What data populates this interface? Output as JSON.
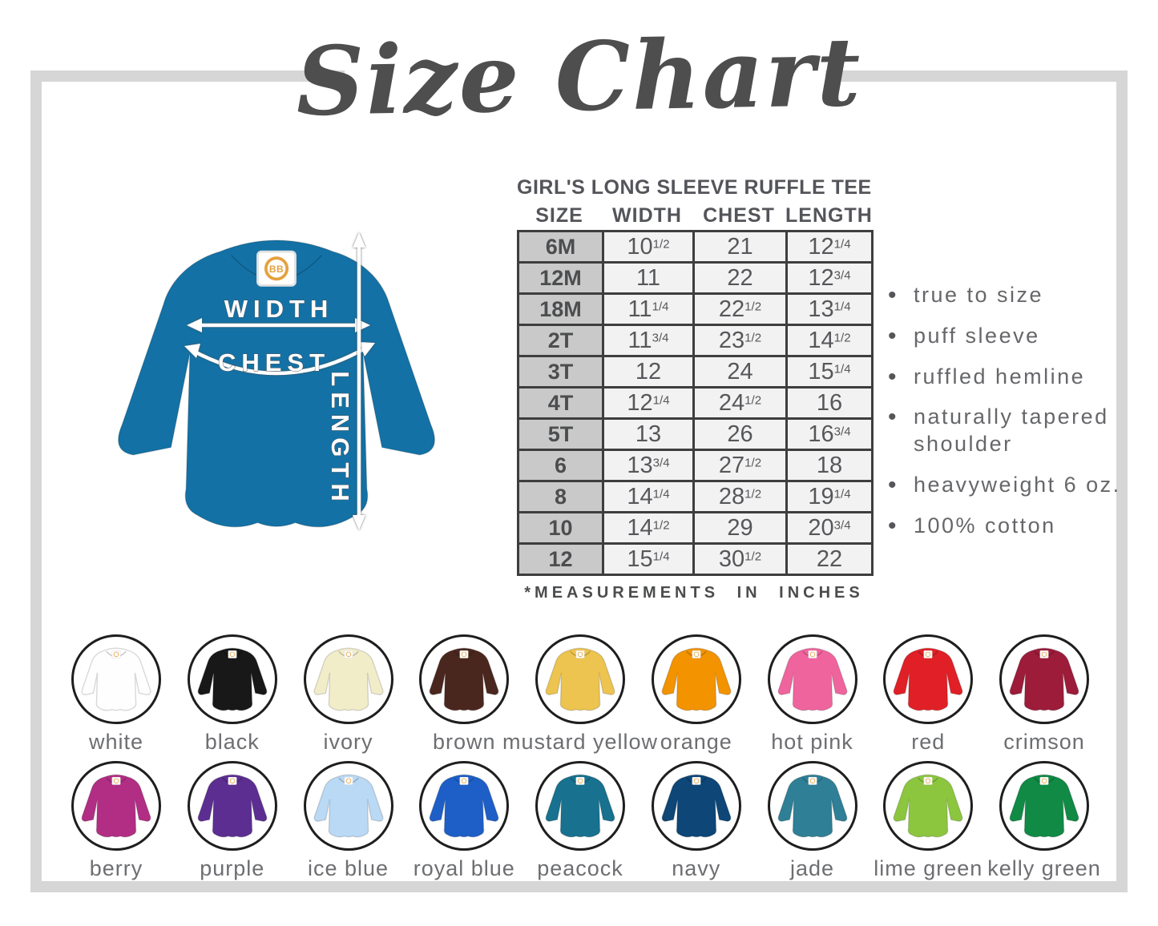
{
  "title": {
    "text": "Size Chart"
  },
  "illustration": {
    "shirt_color": "#1371a5",
    "tag_text": "BB",
    "labels": {
      "width": "WIDTH",
      "chest": "CHEST",
      "length": "LENGTH"
    }
  },
  "size_table": {
    "heading": "GIRL'S LONG SLEEVE RUFFLE TEE",
    "columns": [
      "SIZE",
      "WIDTH",
      "CHEST",
      "LENGTH"
    ],
    "rows": [
      {
        "size": "6M",
        "width": "10 1/2",
        "chest": "21",
        "length": "12 1/4"
      },
      {
        "size": "12M",
        "width": "11",
        "chest": "22",
        "length": "12 3/4"
      },
      {
        "size": "18M",
        "width": "11 1/4",
        "chest": "22 1/2",
        "length": "13 1/4"
      },
      {
        "size": "2T",
        "width": "11 3/4",
        "chest": "23 1/2",
        "length": "14 1/2"
      },
      {
        "size": "3T",
        "width": "12",
        "chest": "24",
        "length": "15 1/4"
      },
      {
        "size": "4T",
        "width": "12 1/4",
        "chest": "24 1/2",
        "length": "16"
      },
      {
        "size": "5T",
        "width": "13",
        "chest": "26",
        "length": "16 3/4"
      },
      {
        "size": "6",
        "width": "13 3/4",
        "chest": "27 1/2",
        "length": "18"
      },
      {
        "size": "8",
        "width": "14 1/4",
        "chest": "28 1/2",
        "length": "19 1/4"
      },
      {
        "size": "10",
        "width": "14 1/2",
        "chest": "29",
        "length": "20 3/4"
      },
      {
        "size": "12",
        "width": "15 1/4",
        "chest": "30 1/2",
        "length": "22"
      }
    ],
    "footnote": "*MEASUREMENTS IN INCHES"
  },
  "features": [
    "true to size",
    "puff sleeve",
    "ruffled hemline",
    "naturally tapered shoulder",
    "heavyweight 6 oz.",
    "100% cotton"
  ],
  "swatches": {
    "rows": [
      [
        {
          "label": "white",
          "hex": "#fefefe"
        },
        {
          "label": "black",
          "hex": "#181818"
        },
        {
          "label": "ivory",
          "hex": "#f2edc9"
        },
        {
          "label": "brown",
          "hex": "#4a271e"
        },
        {
          "label": "mustard yellow",
          "hex": "#edc44f"
        },
        {
          "label": "orange",
          "hex": "#f39300"
        },
        {
          "label": "hot pink",
          "hex": "#f0649e"
        },
        {
          "label": "red",
          "hex": "#e02026"
        },
        {
          "label": "crimson",
          "hex": "#9c1c3a"
        }
      ],
      [
        {
          "label": "berry",
          "hex": "#b12e84"
        },
        {
          "label": "purple",
          "hex": "#5c2e91"
        },
        {
          "label": "ice blue",
          "hex": "#bad9f5"
        },
        {
          "label": "royal blue",
          "hex": "#1e5fc7"
        },
        {
          "label": "peacock",
          "hex": "#17718f"
        },
        {
          "label": "navy",
          "hex": "#0d4677"
        },
        {
          "label": "jade",
          "hex": "#2f7f96"
        },
        {
          "label": "lime green",
          "hex": "#8cc63f"
        },
        {
          "label": "kelly green",
          "hex": "#108a45"
        }
      ]
    ]
  }
}
